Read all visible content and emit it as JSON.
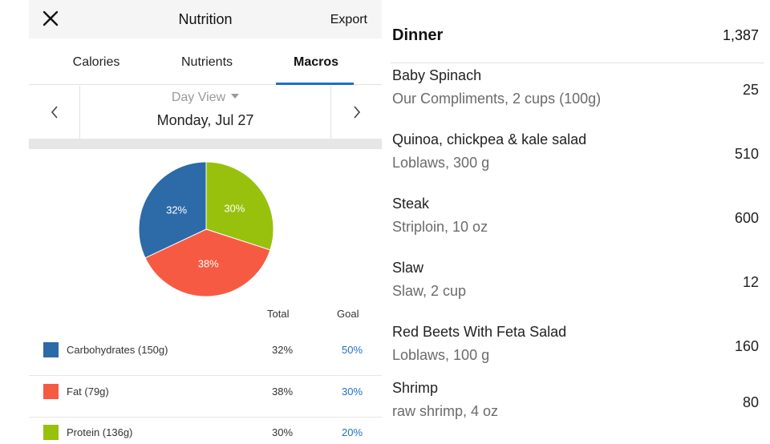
{
  "header": {
    "title": "Nutrition",
    "export_label": "Export"
  },
  "tabs": [
    {
      "label": "Calories",
      "active": false
    },
    {
      "label": "Nutrients",
      "active": false
    },
    {
      "label": "Macros",
      "active": true
    }
  ],
  "day_nav": {
    "view_label": "Day View",
    "date": "Monday, Jul 27"
  },
  "macros": {
    "columns": {
      "total": "Total",
      "goal": "Goal"
    },
    "items": [
      {
        "name": "Carbohydrates (150g)",
        "total": "32%",
        "goal": "50%",
        "percent": 32,
        "color": "#2d6aa8"
      },
      {
        "name": "Fat (79g)",
        "total": "38%",
        "goal": "30%",
        "percent": 38,
        "color": "#f75a43"
      },
      {
        "name": "Protein (136g)",
        "total": "30%",
        "goal": "20%",
        "percent": 30,
        "color": "#98c10e"
      }
    ],
    "pie_labels": [
      "32%",
      "38%",
      "30%"
    ]
  },
  "meal": {
    "title": "Dinner",
    "total": "1,387",
    "foods": [
      {
        "name": "Baby Spinach",
        "desc": "Our Compliments, 2 cups (100g)",
        "calories": "25"
      },
      {
        "name": "Quinoa, chickpea & kale salad",
        "desc": "Loblaws, 300 g",
        "calories": "510"
      },
      {
        "name": "Steak",
        "desc": "Striploin, 10 oz",
        "calories": "600"
      },
      {
        "name": "Slaw",
        "desc": "Slaw, 2 cup",
        "calories": "12"
      },
      {
        "name": "Red Beets With Feta Salad",
        "desc": "Loblaws, 100 g",
        "calories": "160"
      },
      {
        "name": "Shrimp",
        "desc": "raw shrimp, 4 oz",
        "calories": "80"
      }
    ]
  }
}
